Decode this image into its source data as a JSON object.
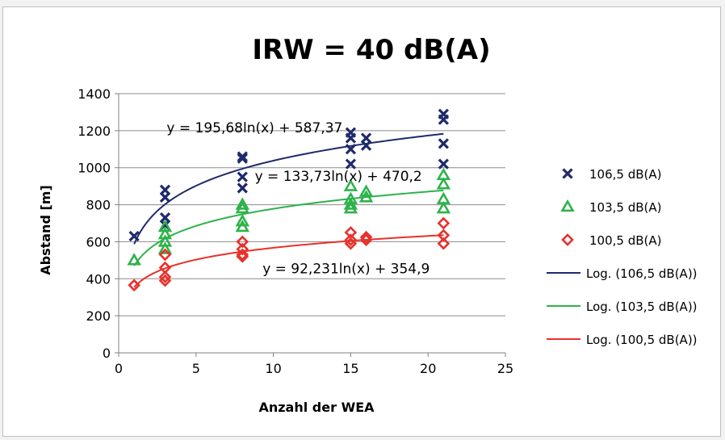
{
  "chart_data": {
    "type": "scatter",
    "title": "IRW = 40 dB(A)",
    "xlabel": "Anzahl der WEA",
    "ylabel": "Abstand [m]",
    "xlim": [
      0,
      25
    ],
    "ylim": [
      0,
      1400
    ],
    "xticks": [
      0,
      5,
      10,
      15,
      20,
      25
    ],
    "yticks": [
      0,
      200,
      400,
      600,
      800,
      1000,
      1200,
      1400
    ],
    "grid": "horizontal",
    "legend_position": "right",
    "series": [
      {
        "name": "106,5 dB(A)",
        "marker": "x",
        "color": "#1f2a6b",
        "points": [
          [
            1,
            630
          ],
          [
            3,
            880
          ],
          [
            3,
            840
          ],
          [
            3,
            730
          ],
          [
            3,
            690
          ],
          [
            8,
            1060
          ],
          [
            8,
            1050
          ],
          [
            8,
            950
          ],
          [
            8,
            890
          ],
          [
            15,
            1190
          ],
          [
            15,
            1160
          ],
          [
            15,
            1100
          ],
          [
            15,
            1020
          ],
          [
            16,
            1160
          ],
          [
            16,
            1120
          ],
          [
            21,
            1290
          ],
          [
            21,
            1260
          ],
          [
            21,
            1130
          ],
          [
            21,
            1020
          ]
        ]
      },
      {
        "name": "103,5 dB(A)",
        "marker": "triangle",
        "color": "#2db34a",
        "points": [
          [
            1,
            500
          ],
          [
            3,
            680
          ],
          [
            3,
            640
          ],
          [
            3,
            600
          ],
          [
            3,
            560
          ],
          [
            8,
            800
          ],
          [
            8,
            780
          ],
          [
            8,
            710
          ],
          [
            8,
            680
          ],
          [
            15,
            900
          ],
          [
            15,
            830
          ],
          [
            15,
            800
          ],
          [
            15,
            780
          ],
          [
            16,
            870
          ],
          [
            16,
            840
          ],
          [
            21,
            960
          ],
          [
            21,
            910
          ],
          [
            21,
            830
          ],
          [
            21,
            780
          ]
        ]
      },
      {
        "name": "100,5 dB(A)",
        "marker": "diamond",
        "color": "#e8312a",
        "points": [
          [
            1,
            365
          ],
          [
            3,
            530
          ],
          [
            3,
            460
          ],
          [
            3,
            410
          ],
          [
            3,
            390
          ],
          [
            8,
            600
          ],
          [
            8,
            560
          ],
          [
            8,
            530
          ],
          [
            8,
            520
          ],
          [
            15,
            650
          ],
          [
            15,
            610
          ],
          [
            15,
            590
          ],
          [
            16,
            625
          ],
          [
            16,
            610
          ],
          [
            21,
            700
          ],
          [
            21,
            635
          ],
          [
            21,
            590
          ]
        ]
      }
    ],
    "trendlines": [
      {
        "name": "Log. (106,5 dB(A))",
        "a": 195.68,
        "b": 587.37,
        "color": "#1f2a6b",
        "equation": "y = 195,68ln(x) + 587,37",
        "label_at": [
          3.1,
          1190
        ]
      },
      {
        "name": "Log. (103,5 dB(A))",
        "a": 133.73,
        "b": 470.2,
        "color": "#2db34a",
        "equation": "y = 133,73ln(x) + 470,2",
        "label_at": [
          8.8,
          930
        ]
      },
      {
        "name": "Log. (100,5 dB(A))",
        "a": 92.231,
        "b": 354.9,
        "color": "#e8312a",
        "equation": "y = 92,231ln(x) + 354,9",
        "label_at": [
          9.3,
          430
        ]
      }
    ]
  }
}
